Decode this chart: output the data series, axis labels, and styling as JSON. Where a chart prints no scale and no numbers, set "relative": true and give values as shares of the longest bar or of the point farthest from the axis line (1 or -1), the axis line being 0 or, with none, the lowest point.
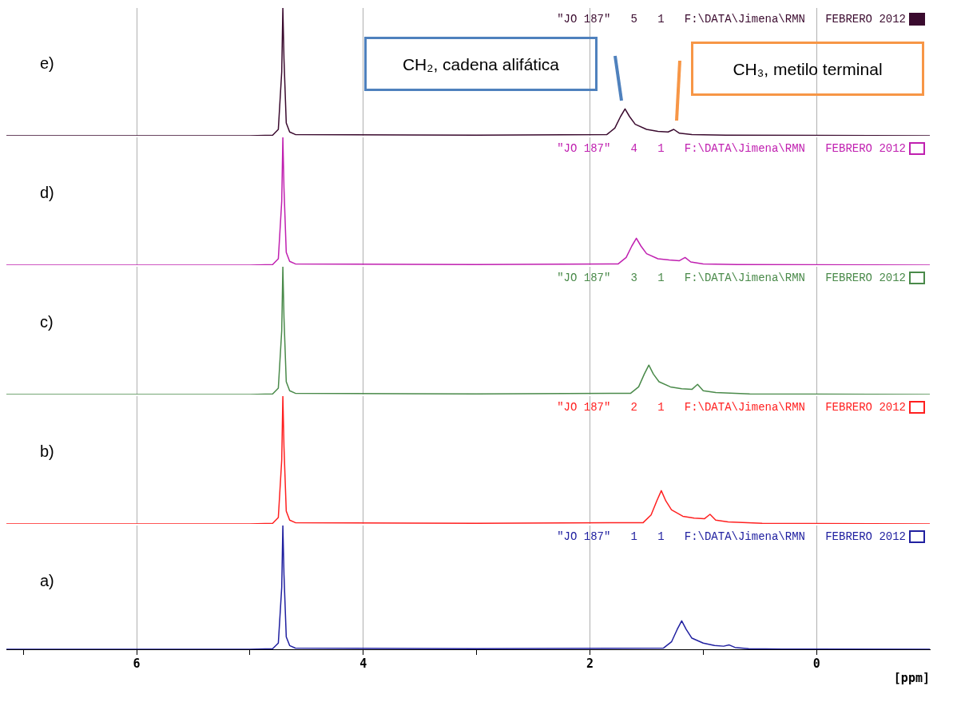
{
  "chart_data": [
    {
      "type": "line",
      "relative": true,
      "xlim": [
        7.15,
        -1.0
      ],
      "xticks": [
        6,
        4,
        2,
        0
      ],
      "grid": "x",
      "tick_labels": false,
      "annotations": [
        "e)",
        "\"JO 187\"   5   1   F:\\DATA\\Jimena\\RMN   FEBRERO 2012",
        "CH₂, cadena alifática",
        "CH₃, metilo terminal"
      ],
      "series": [
        {
          "color": "#3a0a2e",
          "x": [
            7.15,
            5.0,
            4.8,
            4.75,
            4.72,
            4.71,
            4.7,
            4.68,
            4.65,
            4.6,
            3.0,
            1.85,
            1.78,
            1.73,
            1.69,
            1.65,
            1.6,
            1.5,
            1.4,
            1.31,
            1.26,
            1.21,
            1.1,
            0.8,
            -1.0
          ],
          "values": [
            0,
            0,
            0.005,
            0.05,
            0.5,
            1,
            0.6,
            0.1,
            0.03,
            0.01,
            0.005,
            0.01,
            0.06,
            0.15,
            0.21,
            0.15,
            0.09,
            0.05,
            0.035,
            0.03,
            0.05,
            0.02,
            0.01,
            0.005,
            0
          ]
        }
      ]
    },
    {
      "type": "line",
      "relative": true,
      "xlim": [
        7.15,
        -1.0
      ],
      "xticks": [
        6,
        4,
        2,
        0
      ],
      "grid": "x",
      "tick_labels": false,
      "annotations": [
        "d)",
        "\"JO 187\"   4   1   F:\\DATA\\Jimena\\RMN   FEBRERO 2012"
      ],
      "series": [
        {
          "color": "#c020b0",
          "x": [
            7.15,
            5.0,
            4.8,
            4.75,
            4.72,
            4.71,
            4.7,
            4.68,
            4.65,
            4.6,
            3.0,
            1.75,
            1.68,
            1.63,
            1.59,
            1.55,
            1.5,
            1.4,
            1.3,
            1.21,
            1.16,
            1.11,
            1.0,
            0.7,
            -1.0
          ],
          "values": [
            0,
            0,
            0.005,
            0.05,
            0.5,
            1,
            0.6,
            0.1,
            0.03,
            0.01,
            0.005,
            0.01,
            0.06,
            0.15,
            0.21,
            0.15,
            0.09,
            0.05,
            0.04,
            0.035,
            0.06,
            0.025,
            0.01,
            0.005,
            0
          ]
        }
      ]
    },
    {
      "type": "line",
      "relative": true,
      "xlim": [
        7.15,
        -1.0
      ],
      "xticks": [
        6,
        4,
        2,
        0
      ],
      "grid": "x",
      "tick_labels": false,
      "annotations": [
        "c)",
        "\"JO 187\"   3   1   F:\\DATA\\Jimena\\RMN   FEBRERO 2012"
      ],
      "series": [
        {
          "color": "#4a8a4a",
          "x": [
            7.15,
            5.0,
            4.8,
            4.75,
            4.72,
            4.71,
            4.7,
            4.68,
            4.65,
            4.6,
            3.0,
            1.64,
            1.57,
            1.52,
            1.48,
            1.44,
            1.39,
            1.29,
            1.19,
            1.1,
            1.05,
            1.0,
            0.89,
            0.59,
            -1.0
          ],
          "values": [
            0,
            0,
            0.005,
            0.05,
            0.5,
            1,
            0.6,
            0.1,
            0.03,
            0.01,
            0.005,
            0.01,
            0.06,
            0.16,
            0.23,
            0.16,
            0.1,
            0.06,
            0.045,
            0.04,
            0.08,
            0.03,
            0.015,
            0.005,
            0
          ]
        }
      ]
    },
    {
      "type": "line",
      "relative": true,
      "xlim": [
        7.15,
        -1.0
      ],
      "xticks": [
        6,
        4,
        2,
        0
      ],
      "grid": "x",
      "tick_labels": false,
      "annotations": [
        "b)",
        "\"JO 187\"   2   1   F:\\DATA\\Jimena\\RMN   FEBRERO 2012"
      ],
      "series": [
        {
          "color": "#ff2020",
          "x": [
            7.15,
            5.0,
            4.8,
            4.75,
            4.72,
            4.71,
            4.7,
            4.68,
            4.65,
            4.6,
            3.0,
            1.53,
            1.46,
            1.41,
            1.37,
            1.33,
            1.28,
            1.18,
            1.08,
            0.99,
            0.94,
            0.89,
            0.78,
            0.48,
            -1.0
          ],
          "values": [
            0,
            0,
            0.005,
            0.05,
            0.5,
            1,
            0.6,
            0.1,
            0.03,
            0.01,
            0.005,
            0.01,
            0.07,
            0.18,
            0.26,
            0.18,
            0.11,
            0.06,
            0.045,
            0.04,
            0.075,
            0.03,
            0.015,
            0.005,
            0
          ]
        }
      ]
    },
    {
      "type": "line",
      "relative": true,
      "xlim": [
        7.15,
        -1.0
      ],
      "xticks": [
        {
          "value": 7,
          "label": null
        },
        6,
        {
          "value": 5,
          "label": null
        },
        4,
        {
          "value": 3,
          "label": null
        },
        2,
        {
          "value": 1,
          "label": null
        },
        0
      ],
      "grid": "x",
      "xlabel": "[ppm]",
      "annotations": [
        "a)",
        "\"JO 187\"   1   1   F:\\DATA\\Jimena\\RMN   FEBRERO 2012"
      ],
      "series": [
        {
          "color": "#2020a0",
          "x": [
            7.15,
            5.0,
            4.8,
            4.75,
            4.72,
            4.71,
            4.7,
            4.68,
            4.65,
            4.6,
            3.0,
            1.35,
            1.28,
            1.23,
            1.19,
            1.15,
            1.1,
            1.0,
            0.9,
            0.82,
            0.77,
            0.72,
            0.6,
            0.3,
            -1.0
          ],
          "values": [
            0,
            0,
            0.005,
            0.05,
            0.5,
            1,
            0.6,
            0.1,
            0.03,
            0.01,
            0.005,
            0.01,
            0.06,
            0.16,
            0.23,
            0.16,
            0.09,
            0.05,
            0.03,
            0.025,
            0.035,
            0.015,
            0.005,
            0.002,
            0
          ]
        }
      ]
    }
  ]
}
